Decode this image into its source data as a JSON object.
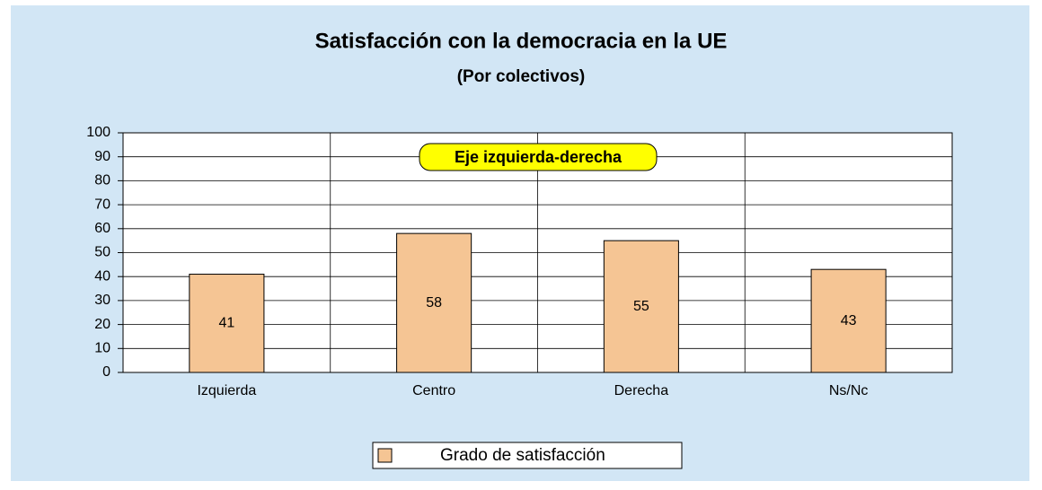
{
  "chart_data": {
    "type": "bar",
    "title": "Satisfacción con la democracia en la UE",
    "subtitle": "(Por colectivos)",
    "annotation": "Eje izquierda-derecha",
    "categories": [
      "Izquierda",
      "Centro",
      "Derecha",
      "Ns/Nc"
    ],
    "series": [
      {
        "name": "Grado de satisfacción",
        "color": "#f5c594",
        "values": [
          41,
          58,
          55,
          43
        ]
      }
    ],
    "ylim": [
      0,
      100
    ],
    "yticks": [
      0,
      10,
      20,
      30,
      40,
      50,
      60,
      70,
      80,
      90,
      100
    ],
    "grid": true,
    "legend": "bottom"
  }
}
